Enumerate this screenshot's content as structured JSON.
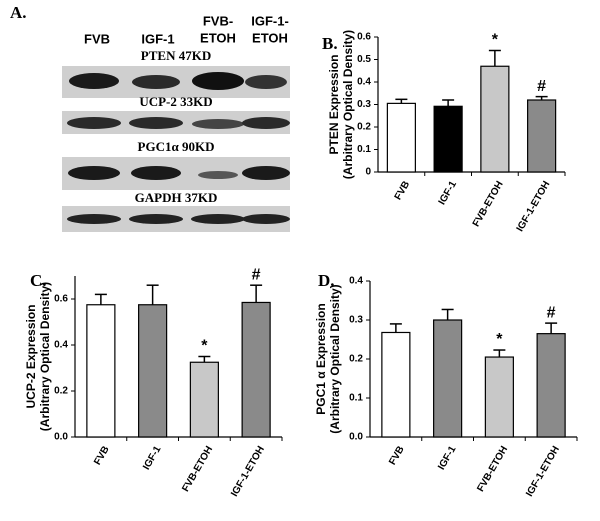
{
  "blot": {
    "label": "A.",
    "columns": [
      [
        "FVB"
      ],
      [
        "IGF-1"
      ],
      [
        "FVB-",
        "ETOH"
      ],
      [
        "IGF-1-",
        "ETOH"
      ]
    ],
    "bands": [
      "PTEN 47KD",
      "UCP-2 33KD",
      "PGC1α 90KD",
      "GAPDH 37KD"
    ]
  },
  "chart_data": [
    {
      "type": "bar",
      "panel_label": "B.",
      "ylabel": [
        "PTEN Expression",
        "(Arbitrary Optical Density)"
      ],
      "categories": [
        "FVB",
        "IGF-1",
        "FVB-ETOH",
        "IGF-1-ETOH"
      ],
      "values": [
        0.305,
        0.292,
        0.47,
        0.32
      ],
      "errors": [
        0.018,
        0.028,
        0.07,
        0.015
      ],
      "colors": [
        "#ffffff",
        "#000000",
        "#c8c8c8",
        "#8a8a8a"
      ],
      "markers": [
        null,
        null,
        "*",
        "#"
      ],
      "ylim": [
        0,
        0.6
      ],
      "yticks": [
        0,
        0.1,
        0.2,
        0.3,
        0.4,
        0.5,
        0.6
      ]
    },
    {
      "type": "bar",
      "panel_label": "C.",
      "ylabel": [
        "UCP-2 Expression",
        "(Arbitrary Optical Density)"
      ],
      "categories": [
        "FVB",
        "IGF-1",
        "FVB-ETOH",
        "IGF-1-ETOH"
      ],
      "values": [
        0.575,
        0.575,
        0.325,
        0.585
      ],
      "errors": [
        0.045,
        0.085,
        0.025,
        0.075
      ],
      "colors": [
        "#ffffff",
        "#8a8a8a",
        "#c8c8c8",
        "#8a8a8a"
      ],
      "markers": [
        null,
        null,
        "*",
        "#"
      ],
      "ylim": [
        0,
        0.7
      ],
      "yticks": [
        {
          "value": 0,
          "label": "0.0"
        },
        0.2,
        0.4,
        0.6
      ]
    },
    {
      "type": "bar",
      "panel_label": "D.",
      "ylabel": [
        "PGC1 α Expression",
        "(Arbitrary Optical Density)"
      ],
      "categories": [
        "FVB",
        "IGF-1",
        "FVB-ETOH",
        "IGF-1-ETOH"
      ],
      "values": [
        0.268,
        0.3,
        0.205,
        0.265
      ],
      "errors": [
        0.022,
        0.027,
        0.018,
        0.027
      ],
      "colors": [
        "#ffffff",
        "#8a8a8a",
        "#c8c8c8",
        "#8a8a8a"
      ],
      "markers": [
        null,
        null,
        "*",
        "#"
      ],
      "ylim": [
        0,
        0.4
      ],
      "yticks": [
        {
          "value": 0,
          "label": "0.0"
        },
        0.1,
        0.2,
        0.3,
        0.4
      ]
    }
  ]
}
